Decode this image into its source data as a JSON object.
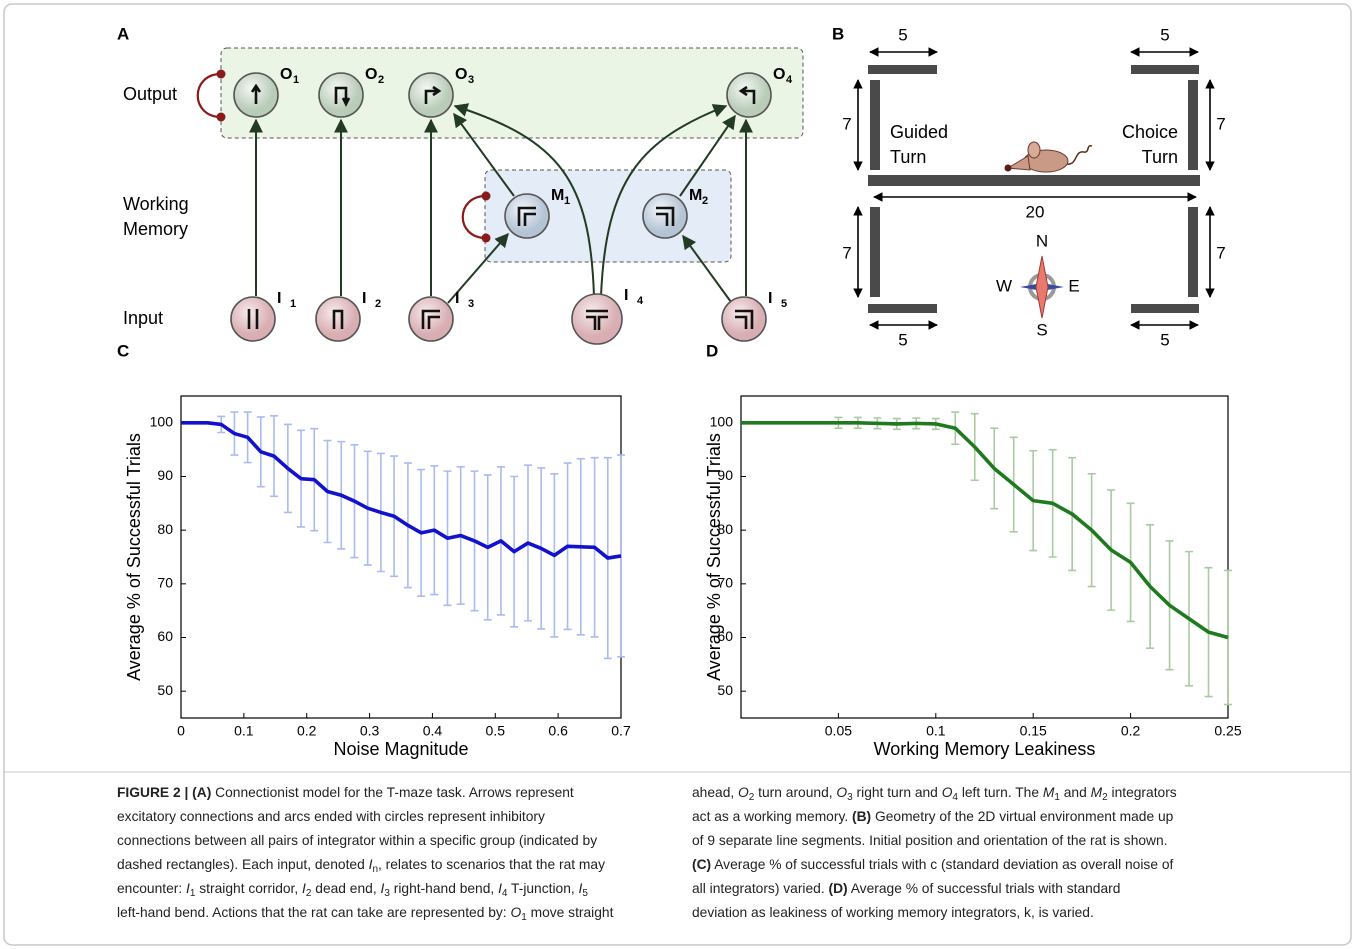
{
  "panel_a": {
    "label": "A",
    "row_labels": {
      "output": "Output",
      "working_memory": [
        "Working",
        "Memory"
      ],
      "input": "Input"
    },
    "nodes": [
      {
        "letter": "O",
        "index": "1"
      },
      {
        "letter": "O",
        "index": "2"
      },
      {
        "letter": "O",
        "index": "3"
      },
      {
        "letter": "O",
        "index": "4"
      },
      {
        "letter": "M",
        "index": "1"
      },
      {
        "letter": "M",
        "index": "2"
      },
      {
        "letter": "I",
        "index": "1"
      },
      {
        "letter": "I",
        "index": "2"
      },
      {
        "letter": "I",
        "index": "3"
      },
      {
        "letter": "I",
        "index": "4"
      },
      {
        "letter": "I",
        "index": "5"
      }
    ]
  },
  "panel_b": {
    "label": "B",
    "dimensions": [
      5,
      5,
      7,
      7,
      20,
      7,
      7,
      5,
      5
    ],
    "guided_turn": [
      "Guided",
      "Turn"
    ],
    "choice_turn": [
      "Choice",
      "Turn"
    ],
    "compass": {
      "n": "N",
      "s": "S",
      "w": "W",
      "e": "E"
    }
  },
  "chart_data": [
    {
      "type": "line",
      "panel_label": "C",
      "xlabel": "Noise Magnitude",
      "ylabel": "Average % of Successful Trials",
      "x": [
        0,
        0.021,
        0.042,
        0.064,
        0.085,
        0.106,
        0.127,
        0.148,
        0.17,
        0.191,
        0.212,
        0.233,
        0.255,
        0.276,
        0.297,
        0.318,
        0.339,
        0.361,
        0.382,
        0.403,
        0.424,
        0.445,
        0.467,
        0.488,
        0.509,
        0.53,
        0.552,
        0.573,
        0.594,
        0.615,
        0.636,
        0.658,
        0.679,
        0.7
      ],
      "series": [
        {
          "color": "#1212cc",
          "error_color": "#aabbee",
          "values": [
            100,
            100,
            100,
            99.7,
            98,
            97.3,
            94.6,
            93.8,
            91.5,
            89.6,
            89.4,
            87.2,
            86.5,
            85.4,
            84.1,
            83.3,
            82.6,
            80.9,
            79.5,
            80,
            78.5,
            79,
            78,
            76.8,
            78,
            76,
            77.6,
            76.6,
            75.3,
            77,
            76.9,
            76.8,
            74.8,
            75.2
          ],
          "errors": [
            null,
            null,
            null,
            1.5,
            4,
            4.7,
            6.5,
            7.5,
            8.2,
            9,
            9.5,
            9.5,
            10,
            10.5,
            10.6,
            11,
            11.2,
            11.6,
            11.8,
            12,
            12.5,
            12.8,
            13,
            13.5,
            13.8,
            14,
            14.5,
            15,
            15.2,
            15.5,
            16.4,
            16.7,
            18.7,
            18.8
          ]
        }
      ],
      "xlim": [
        0,
        0.7
      ],
      "ylim": [
        45,
        105
      ],
      "xticks": [
        0,
        0.1,
        0.2,
        0.3,
        0.4,
        0.5,
        0.6,
        0.7
      ],
      "yticks": [
        50,
        60,
        70,
        80,
        90,
        100
      ]
    },
    {
      "type": "line",
      "panel_label": "D",
      "xlabel": "Working Memory Leakiness",
      "ylabel": "Average % of Successful Trials",
      "x": [
        0,
        0.01,
        0.02,
        0.03,
        0.04,
        0.05,
        0.06,
        0.07,
        0.08,
        0.09,
        0.1,
        0.11,
        0.12,
        0.13,
        0.14,
        0.15,
        0.16,
        0.17,
        0.18,
        0.19,
        0.2,
        0.21,
        0.22,
        0.23,
        0.24,
        0.25
      ],
      "series": [
        {
          "color": "#1f7a1f",
          "error_color": "#a9caa2",
          "values": [
            100,
            100,
            100,
            100,
            100,
            100,
            100,
            99.9,
            99.8,
            99.9,
            99.8,
            99,
            95.5,
            91.5,
            88.5,
            85.5,
            85,
            83,
            80,
            76.3,
            74,
            69.5,
            66,
            63.5,
            61,
            60
          ],
          "errors": [
            null,
            null,
            null,
            null,
            null,
            1,
            1,
            1,
            1,
            1,
            1,
            3,
            6.2,
            7.5,
            8.8,
            9.3,
            10,
            10.5,
            10.5,
            11.2,
            11,
            11.5,
            12,
            12.5,
            12,
            12.5
          ]
        }
      ],
      "xlim": [
        0,
        0.25
      ],
      "ylim": [
        45,
        105
      ],
      "xticks": [
        0.05,
        0.1,
        0.15,
        0.2,
        0.25
      ],
      "yticks": [
        50,
        60,
        70,
        80,
        90,
        100
      ]
    }
  ],
  "caption": {
    "left": [
      [
        "FIGURE 2 | (A)",
        " Connectionist model for the T-maze task. Arrows represent"
      ],
      [
        "excitatory connections and arcs ended with circles represent inhibitory"
      ],
      [
        "connections between all pairs of integrator within a specific group (indicated by"
      ],
      [
        "dashed rectangles). Each input, denoted ",
        "I",
        "n",
        ", relates to scenarios that the rat may"
      ],
      [
        "encounter: ",
        "I",
        "1",
        " straight corridor, ",
        "I",
        "2",
        " dead end, ",
        "I",
        "3",
        " right-hand bend, ",
        "I",
        "4",
        " T-junction, ",
        "I",
        "5"
      ],
      [
        "left-hand bend. Actions that the rat can take are represented by: ",
        "O",
        "1",
        " move straight"
      ]
    ],
    "right": [
      [
        "ahead, ",
        "O",
        "2",
        " turn around, ",
        "O",
        "3",
        " right turn and ",
        "O",
        "4",
        " left turn. The ",
        "M",
        "1",
        " and ",
        "M",
        "2",
        " integrators"
      ],
      [
        "act as a working memory. ",
        "(B)",
        " Geometry of the 2D virtual environment made up"
      ],
      [
        "of 9 separate line segments. Initial position and orientation of the rat is shown."
      ],
      [
        "(C)",
        " Average % of successful trials with c (standard deviation as overall noise of"
      ],
      [
        "all integrators) varied. ",
        "(D)",
        " Average % of successful trials with standard"
      ],
      [
        "deviation as leakiness of working memory integrators, k, is varied."
      ]
    ]
  }
}
